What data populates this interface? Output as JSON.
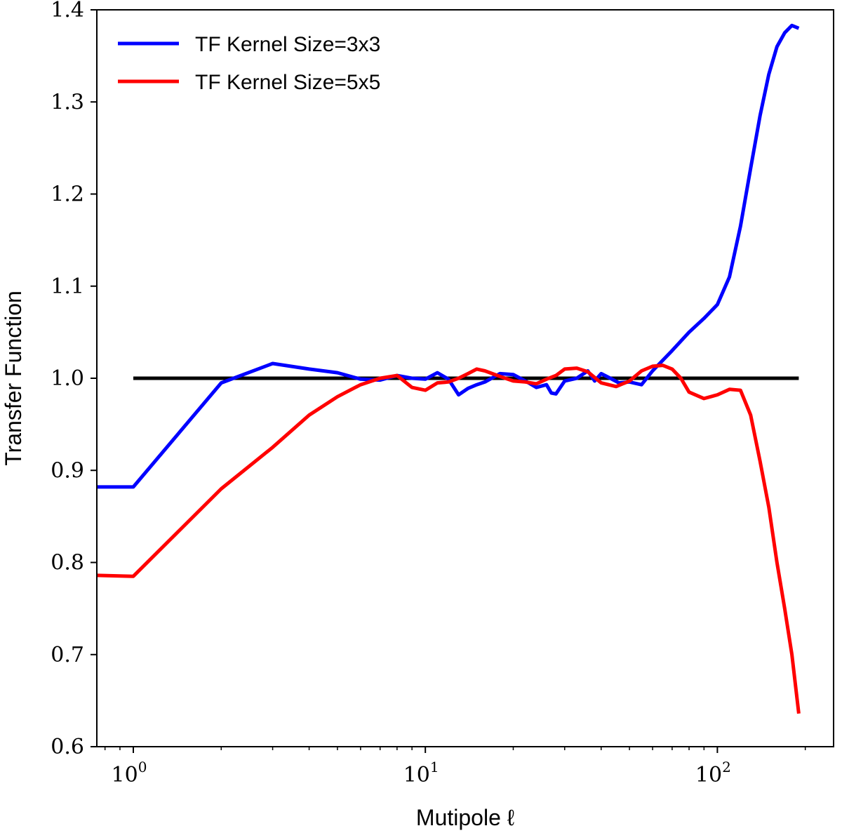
{
  "chart_data": {
    "type": "line",
    "xlabel": "Mutipole ℓ",
    "ylabel": "Transfer Function",
    "xscale": "log",
    "xlim": [
      0.75,
      250
    ],
    "ylim": [
      0.6,
      1.4
    ],
    "grid": false,
    "legend_position": "top-left",
    "x_ticks": [
      {
        "value": 1,
        "base": "10",
        "exp": "0"
      },
      {
        "value": 10,
        "base": "10",
        "exp": "1"
      },
      {
        "value": 100,
        "base": "10",
        "exp": "2"
      }
    ],
    "y_ticks": [
      {
        "value": 0.6,
        "label": "0.6"
      },
      {
        "value": 0.7,
        "label": "0.7"
      },
      {
        "value": 0.8,
        "label": "0.8"
      },
      {
        "value": 0.9,
        "label": "0.9"
      },
      {
        "value": 1.0,
        "label": "1.0"
      },
      {
        "value": 1.1,
        "label": "1.1"
      },
      {
        "value": 1.2,
        "label": "1.2"
      },
      {
        "value": 1.3,
        "label": "1.3"
      },
      {
        "value": 1.4,
        "label": "1.4"
      }
    ],
    "reference_line": {
      "y": 1.0,
      "x_start": 1,
      "x_end": 190,
      "color": "#000000"
    },
    "series": [
      {
        "name": "TF Kernel Size=3x3",
        "color": "#0000ff",
        "x": [
          0.75,
          1,
          2,
          3,
          4,
          5,
          6,
          7,
          8,
          9,
          10,
          11,
          12,
          13,
          14,
          15,
          16,
          18,
          20,
          22,
          24,
          26,
          27,
          28,
          30,
          33,
          36,
          38,
          40,
          43,
          46,
          50,
          55,
          60,
          70,
          80,
          90,
          100,
          110,
          120,
          130,
          140,
          150,
          160,
          170,
          180,
          190
        ],
        "values": [
          0.882,
          0.882,
          0.995,
          1.016,
          1.01,
          1.006,
          0.999,
          0.998,
          1.003,
          1.0,
          0.999,
          1.006,
          0.999,
          0.982,
          0.989,
          0.993,
          0.996,
          1.005,
          1.004,
          0.997,
          0.99,
          0.993,
          0.984,
          0.983,
          0.997,
          1.0,
          1.008,
          0.997,
          1.005,
          1.0,
          0.995,
          0.996,
          0.993,
          1.008,
          1.03,
          1.05,
          1.065,
          1.08,
          1.11,
          1.165,
          1.228,
          1.285,
          1.33,
          1.36,
          1.375,
          1.383,
          1.38
        ]
      },
      {
        "name": "TF Kernel Size=5x5",
        "color": "#ff0000",
        "x": [
          0.75,
          1,
          2,
          3,
          4,
          5,
          6,
          7,
          8,
          9,
          10,
          11,
          12,
          13,
          14,
          15,
          16,
          18,
          20,
          22,
          24,
          26,
          28,
          30,
          33,
          36,
          40,
          45,
          50,
          55,
          60,
          65,
          70,
          75,
          80,
          90,
          100,
          110,
          120,
          130,
          140,
          150,
          160,
          170,
          180,
          190
        ],
        "values": [
          0.786,
          0.785,
          0.88,
          0.925,
          0.96,
          0.98,
          0.993,
          1.0,
          1.003,
          0.99,
          0.987,
          0.995,
          0.996,
          1.0,
          1.005,
          1.01,
          1.008,
          1.002,
          0.997,
          0.996,
          0.994,
          0.999,
          1.003,
          1.01,
          1.011,
          1.007,
          0.995,
          0.991,
          0.997,
          1.008,
          1.013,
          1.014,
          1.01,
          1.0,
          0.985,
          0.978,
          0.982,
          0.988,
          0.987,
          0.96,
          0.91,
          0.86,
          0.8,
          0.75,
          0.7,
          0.636
        ]
      }
    ]
  }
}
